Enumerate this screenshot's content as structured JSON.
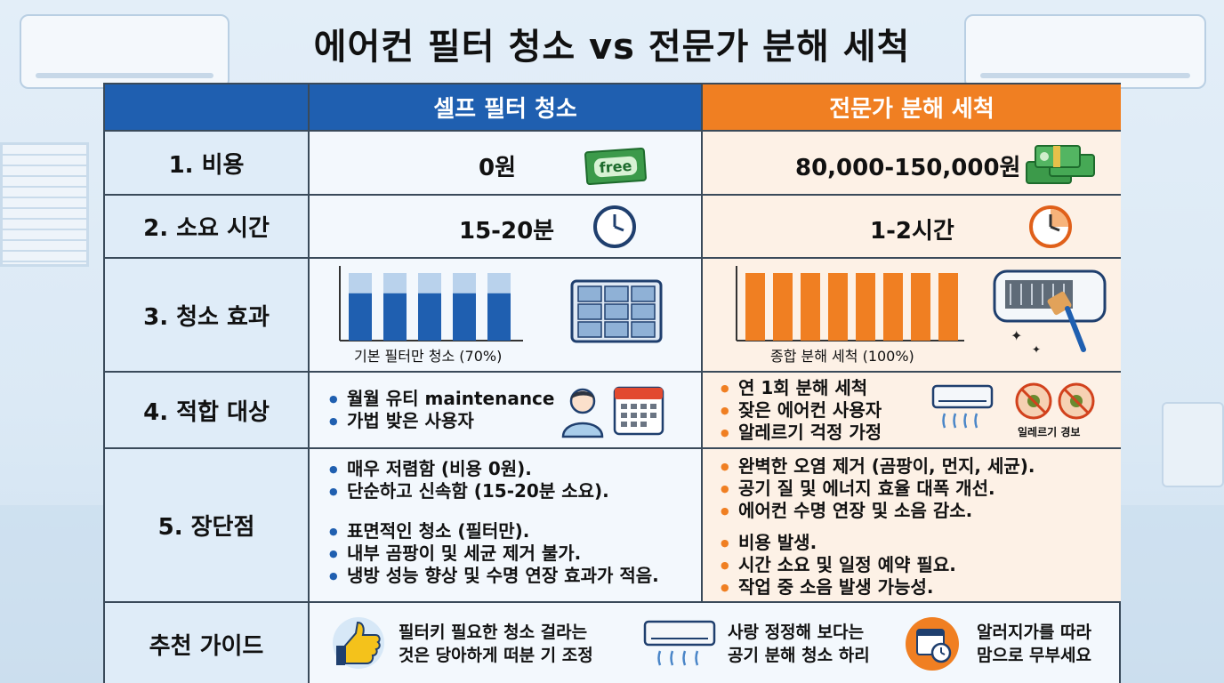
{
  "title": "에어컨 필터 청소 vs 전문가 분해 세척",
  "colors": {
    "self": "#1f5fb0",
    "pro": "#f07f22",
    "self_bg": "#f3f8fd",
    "pro_bg": "#fdf1e6",
    "label_bg": "#dfecf8"
  },
  "header": {
    "self": "셀프 필터 청소",
    "pro": "전문가 분해 세척"
  },
  "rows": {
    "cost": {
      "label": "1. 비용",
      "self": "0원",
      "self_icon_text": "free",
      "pro": "80,000-150,000원"
    },
    "time": {
      "label": "2. 소요 시간",
      "self": "15-20분",
      "pro": "1-2시간"
    },
    "effect": {
      "label": "3. 청소 효과",
      "self_caption": "기본 필터만 청소 (70%)",
      "pro_caption": "종합 분해 세척 (100%)",
      "self_level": 0.7,
      "pro_level": 1.0,
      "self_bar_count": 5,
      "pro_bar_count": 8
    },
    "target": {
      "label": "4. 적합 대상",
      "self": [
        "월월 유티 maintenance",
        "가법 밪은 사용자"
      ],
      "pro": [
        "연 1회 분해 세척",
        "잦은 에어컨 사용자",
        "알레르기 걱정 가정"
      ],
      "pro_icon_caption": "일레르기 경보"
    },
    "proscons": {
      "label": "5. 장단점",
      "self_pros": [
        "매우 저렴함 (비용 0원).",
        "단순하고 신속함 (15-20분 소요)."
      ],
      "self_cons": [
        "표면적인 청소 (필터만).",
        "내부 곰팡이 및 세균 제거 불가.",
        "냉방 성능 향상 및 수명 연장 효과가 적음."
      ],
      "pro_pros": [
        "완벽한 오염 제거 (곰팡이, 먼지, 세균).",
        "공기 질 및 에너지 효율 대폭 개선.",
        "에어컨 수명 연장 및 소음 감소."
      ],
      "pro_cons": [
        "비용 발생.",
        "시간 소요 및 일정 예약 필요.",
        "작업 중 소음 발생 가능성."
      ]
    },
    "guide": {
      "label": "추천 가이드",
      "items": [
        {
          "icon": "thumbs-up-icon",
          "line1": "필터키 필요한 청소 걸라는",
          "line2": "것은 당아하게 떠분 기 조정"
        },
        {
          "icon": "air-conditioner-icon",
          "line1": "사랑 정정해 보다는",
          "line2": "공기 분해 청소 하리"
        },
        {
          "icon": "calendar-clock-icon",
          "line1": "알러지가를 따라",
          "line2": "맘으로 무부세요"
        }
      ]
    }
  }
}
